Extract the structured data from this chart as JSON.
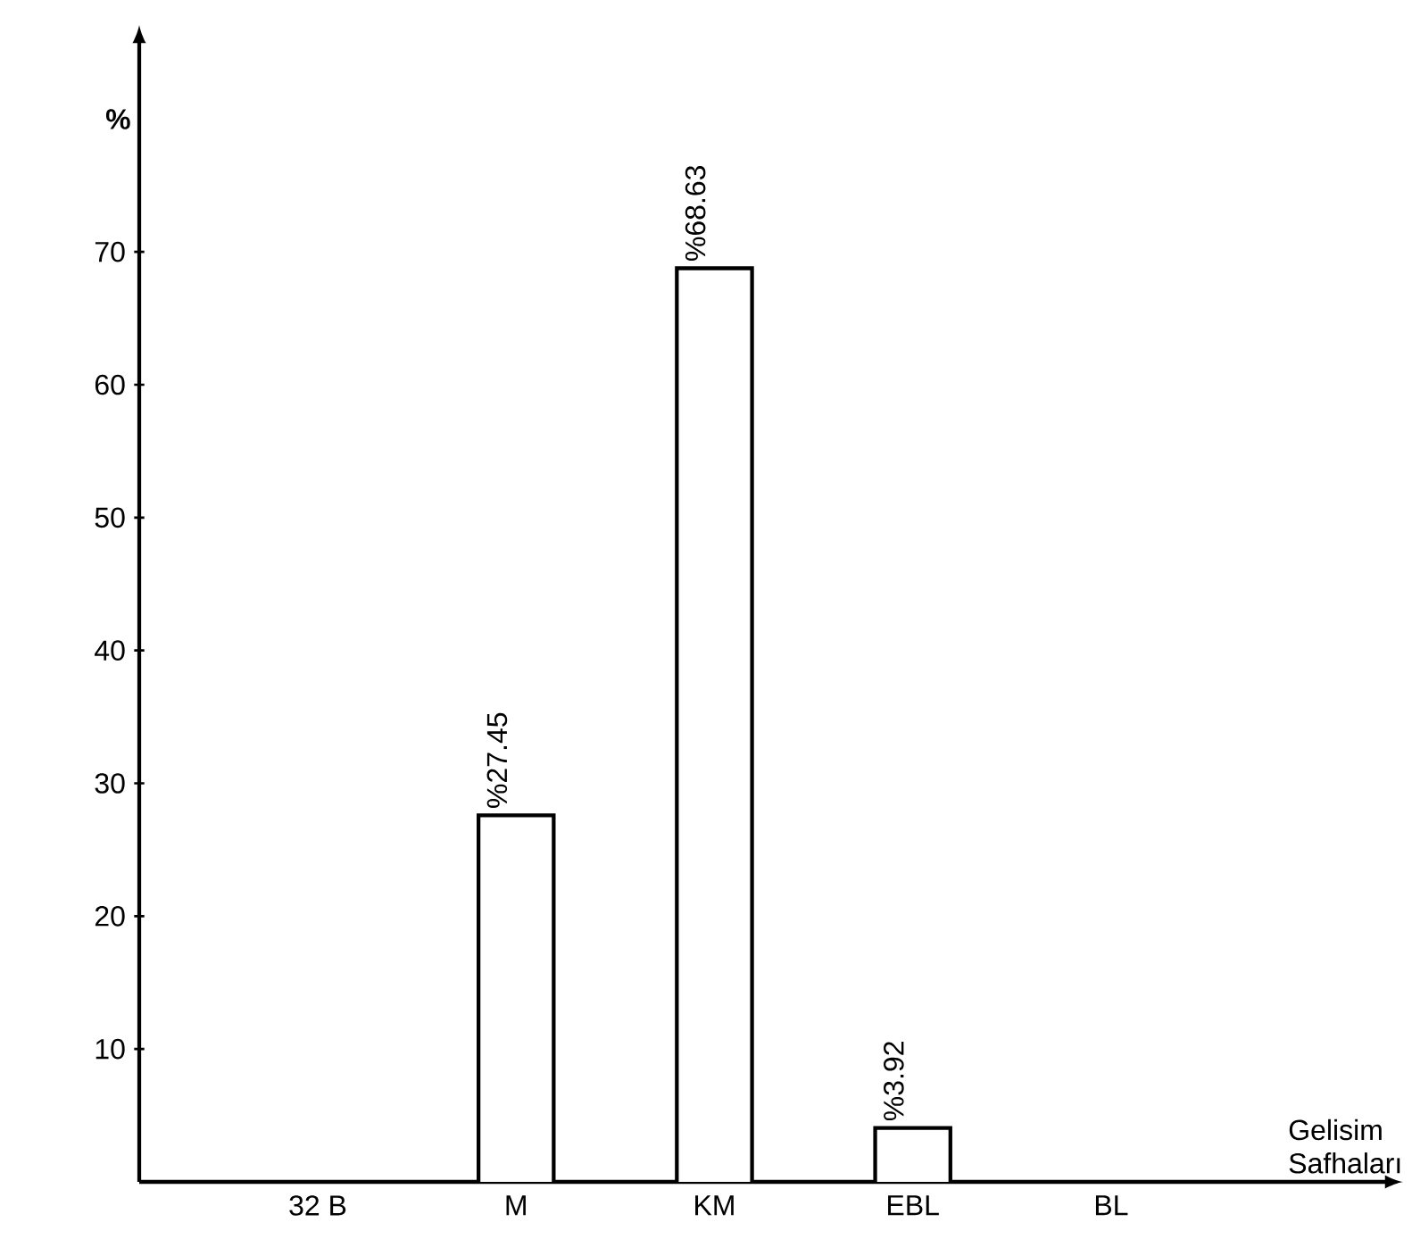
{
  "chart_data": {
    "type": "bar",
    "categories": [
      "32 B",
      "M",
      "KM",
      "EBL",
      "BL"
    ],
    "values": [
      null,
      27.45,
      68.63,
      3.92,
      null
    ],
    "value_labels": [
      null,
      "%27.45",
      "%68.63",
      "%3.92",
      null
    ],
    "color": "#ffffff",
    "xlabel": "Gelisim Safhaları",
    "ylabel": "%",
    "ylim": [
      0,
      86
    ],
    "yticks": [
      10,
      20,
      30,
      40,
      50,
      60,
      70
    ],
    "grid": false
  }
}
